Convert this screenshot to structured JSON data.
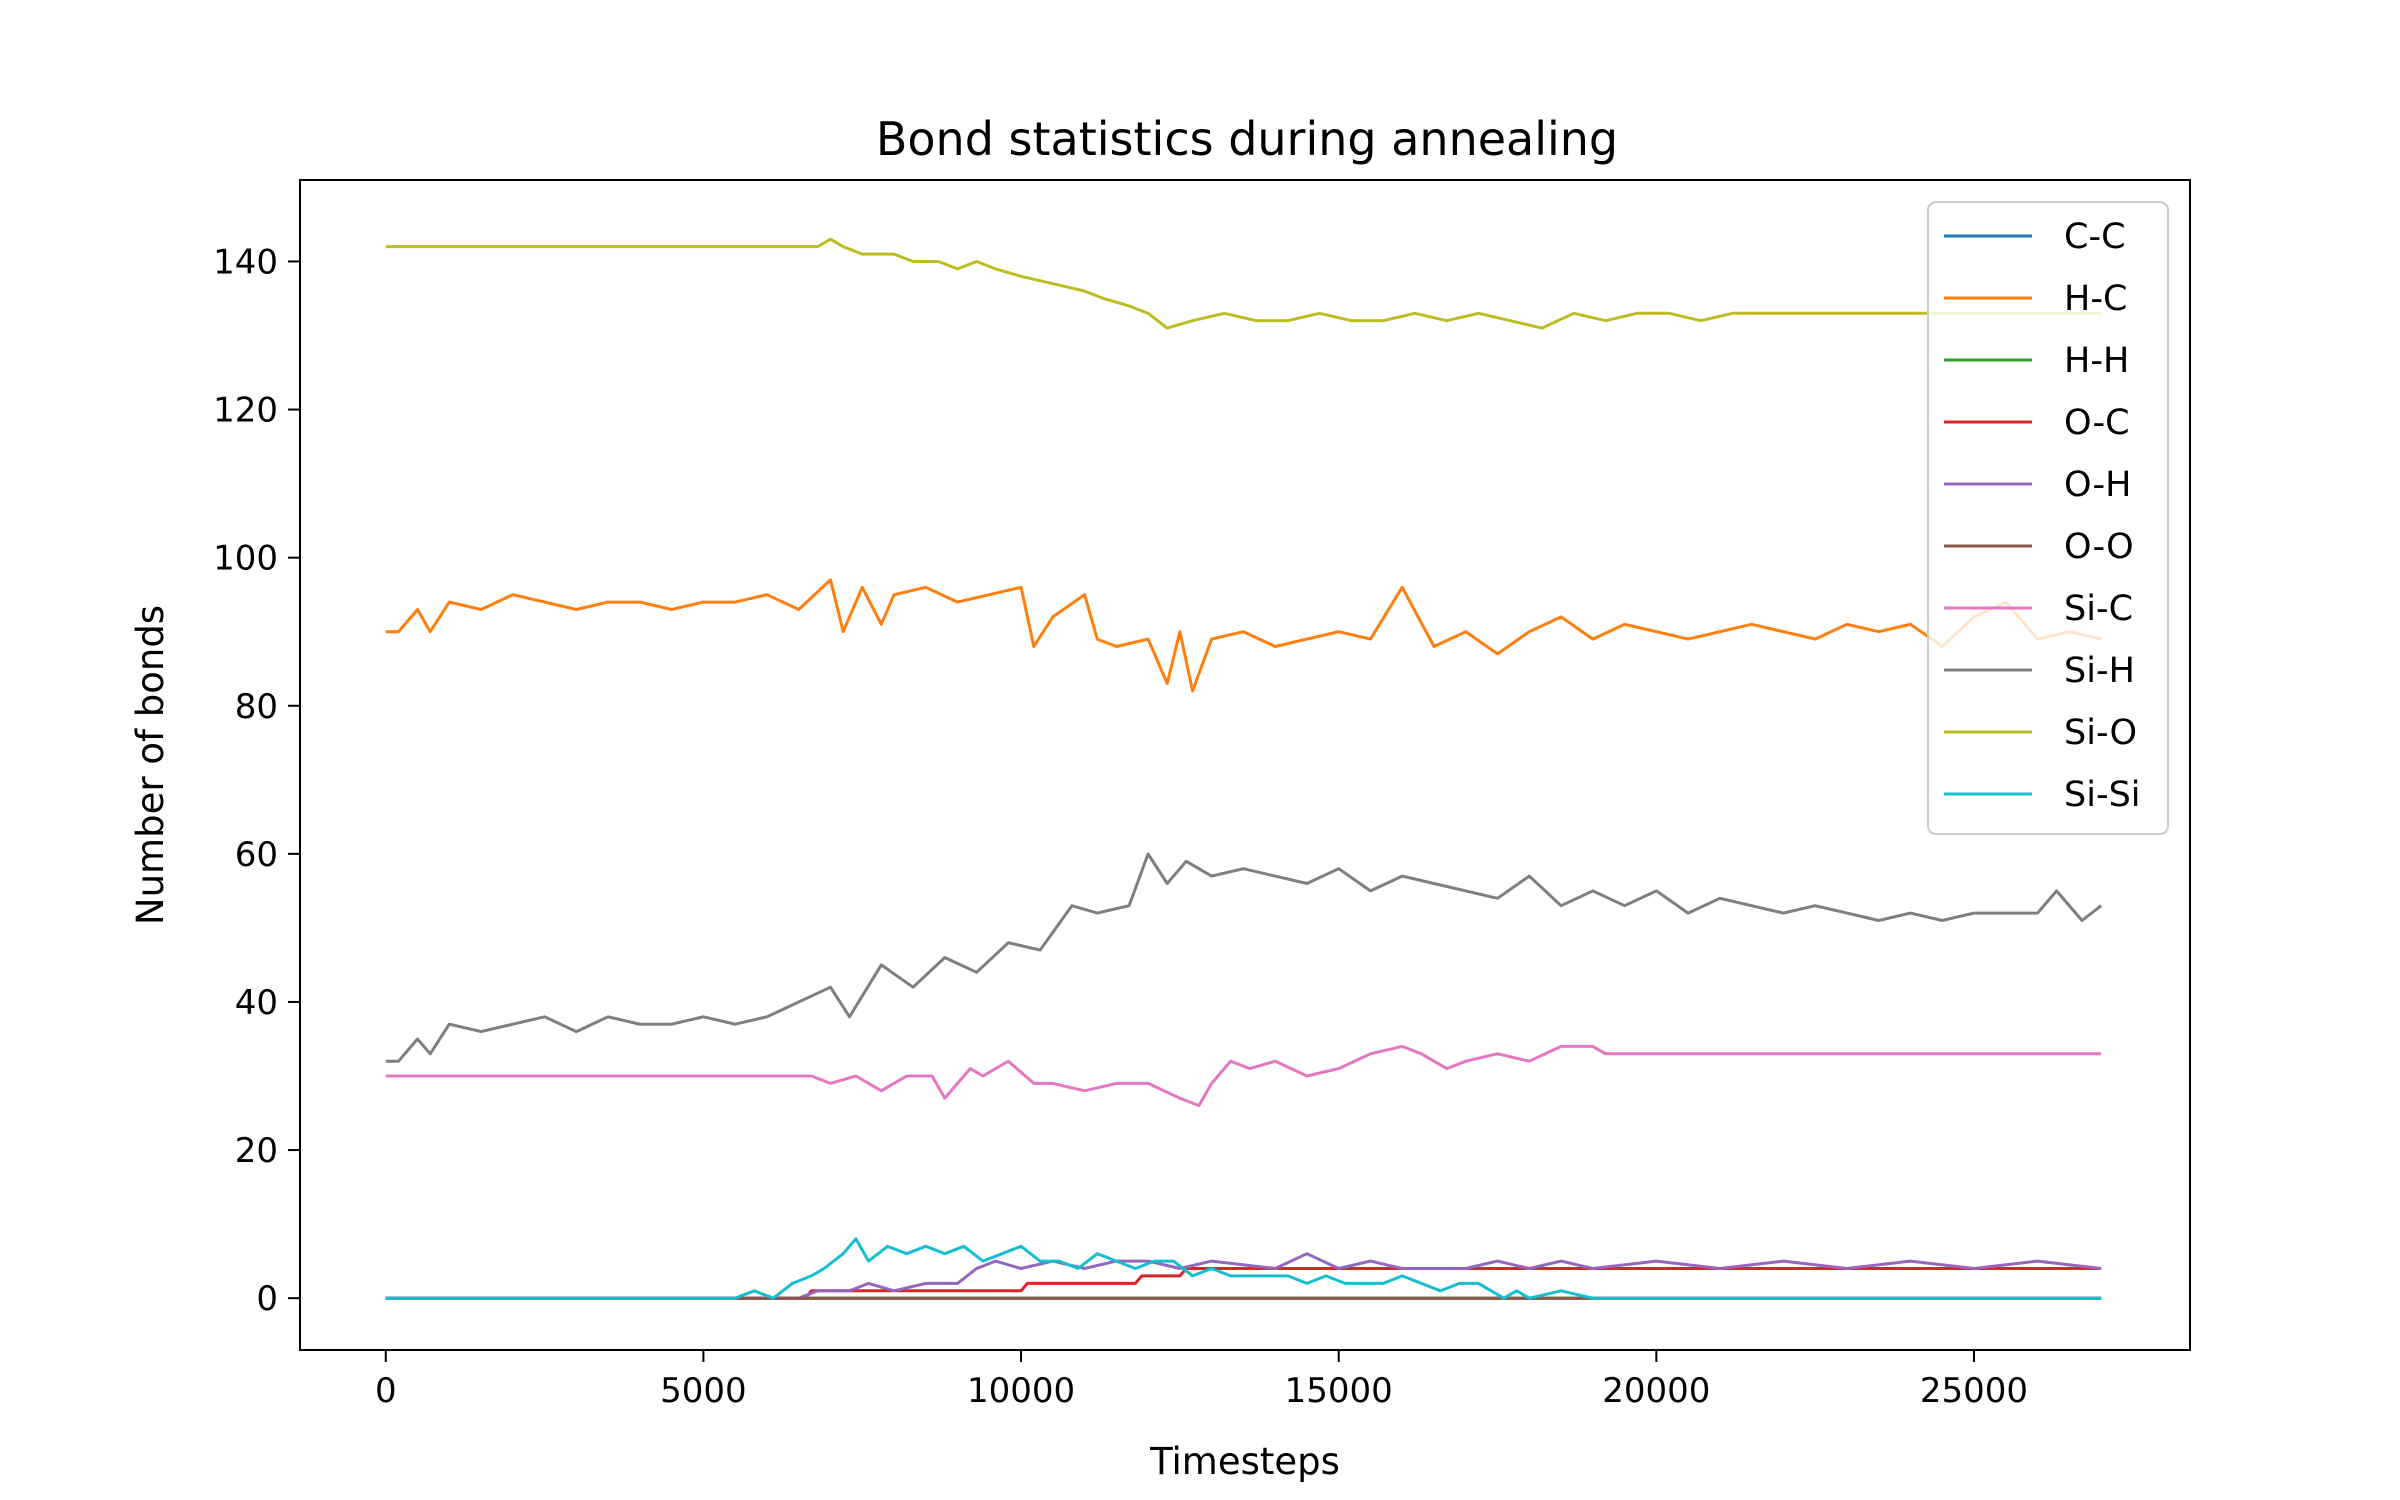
{
  "chart_data": {
    "type": "line",
    "title": "Bond statistics during annealing",
    "xlabel": "Timesteps",
    "ylabel": "Number of bonds",
    "xlim": [
      -1350,
      28400
    ],
    "ylim": [
      -7,
      151
    ],
    "xticks": [
      0,
      5000,
      10000,
      15000,
      20000,
      25000
    ],
    "xtick_labels": [
      "0",
      "5000",
      "10000",
      "15000",
      "20000",
      "25000"
    ],
    "yticks": [
      0,
      20,
      40,
      60,
      80,
      100,
      120,
      140
    ],
    "ytick_labels": [
      "0",
      "20",
      "40",
      "60",
      "80",
      "100",
      "120",
      "140"
    ],
    "grid": false,
    "legend_position": "top-right",
    "series": [
      {
        "name": "C-C",
        "color": "#1f77b4",
        "x": [
          0,
          27000
        ],
        "y": [
          0,
          0
        ]
      },
      {
        "name": "H-C",
        "color": "#ff7f0e",
        "x": [
          0,
          200,
          500,
          700,
          1000,
          1500,
          2000,
          2500,
          3000,
          3500,
          4000,
          4500,
          5000,
          5500,
          6000,
          6500,
          7000,
          7200,
          7500,
          7800,
          8000,
          8500,
          9000,
          9500,
          10000,
          10200,
          10500,
          11000,
          11200,
          11500,
          12000,
          12300,
          12500,
          12700,
          13000,
          13500,
          14000,
          14500,
          15000,
          15500,
          16000,
          16500,
          17000,
          17500,
          18000,
          18500,
          19000,
          19500,
          20000,
          20500,
          21000,
          21500,
          22000,
          22500,
          23000,
          23500,
          24000,
          24500,
          25000,
          25500,
          26000,
          26500,
          27000
        ],
        "y": [
          90,
          90,
          93,
          90,
          94,
          93,
          95,
          94,
          93,
          94,
          94,
          93,
          94,
          94,
          95,
          93,
          97,
          90,
          96,
          91,
          95,
          96,
          94,
          95,
          96,
          88,
          92,
          95,
          89,
          88,
          89,
          83,
          90,
          82,
          89,
          90,
          88,
          89,
          90,
          89,
          96,
          88,
          90,
          87,
          90,
          92,
          89,
          91,
          90,
          89,
          90,
          91,
          90,
          89,
          91,
          90,
          91,
          88,
          92,
          94,
          89,
          90,
          89
        ]
      },
      {
        "name": "H-H",
        "color": "#2ca02c",
        "x": [
          0,
          27000
        ],
        "y": [
          0,
          0
        ]
      },
      {
        "name": "O-C",
        "color": "#d62728",
        "x": [
          0,
          6600,
          6700,
          8000,
          8100,
          10000,
          10100,
          11800,
          11900,
          12500,
          12600,
          16000,
          16100,
          27000
        ],
        "y": [
          0,
          0,
          1,
          1,
          1,
          1,
          2,
          2,
          3,
          3,
          4,
          4,
          4,
          4
        ]
      },
      {
        "name": "O-H",
        "color": "#9467bd",
        "x": [
          0,
          6500,
          6800,
          7300,
          7600,
          8000,
          8500,
          9000,
          9300,
          9600,
          10000,
          10500,
          11000,
          11500,
          12000,
          12500,
          13000,
          14000,
          14500,
          15000,
          15500,
          16000,
          17000,
          17500,
          18000,
          18500,
          19000,
          20000,
          21000,
          22000,
          23000,
          24000,
          25000,
          26000,
          27000
        ],
        "y": [
          0,
          0,
          1,
          1,
          2,
          1,
          2,
          2,
          4,
          5,
          4,
          5,
          4,
          5,
          5,
          4,
          5,
          4,
          6,
          4,
          5,
          4,
          4,
          5,
          4,
          5,
          4,
          5,
          4,
          5,
          4,
          5,
          4,
          5,
          4
        ]
      },
      {
        "name": "O-O",
        "color": "#8c564b",
        "x": [
          0,
          27000
        ],
        "y": [
          0,
          0
        ]
      },
      {
        "name": "Si-C",
        "color": "#e377c2",
        "x": [
          0,
          6700,
          7000,
          7400,
          7800,
          8200,
          8600,
          8800,
          9000,
          9200,
          9400,
          9800,
          10200,
          10500,
          11000,
          11500,
          12000,
          12500,
          12800,
          13000,
          13300,
          13600,
          14000,
          14500,
          15000,
          15500,
          16000,
          16300,
          16700,
          17000,
          17500,
          18000,
          18500,
          19000,
          19200,
          27000
        ],
        "y": [
          30,
          30,
          29,
          30,
          28,
          30,
          30,
          27,
          29,
          31,
          30,
          32,
          29,
          29,
          28,
          29,
          29,
          27,
          26,
          29,
          32,
          31,
          32,
          30,
          31,
          33,
          34,
          33,
          31,
          32,
          33,
          32,
          34,
          34,
          33,
          33
        ]
      },
      {
        "name": "Si-H",
        "color": "#7f7f7f",
        "x": [
          0,
          200,
          500,
          700,
          1000,
          1500,
          2000,
          2500,
          3000,
          3500,
          4000,
          4500,
          5000,
          5500,
          6000,
          6500,
          7000,
          7300,
          7800,
          8300,
          8800,
          9300,
          9800,
          10300,
          10800,
          11200,
          11700,
          12000,
          12300,
          12600,
          13000,
          13500,
          14000,
          14500,
          15000,
          15500,
          16000,
          16500,
          17000,
          17500,
          18000,
          18500,
          19000,
          19500,
          20000,
          20500,
          21000,
          21500,
          22000,
          22500,
          23000,
          23500,
          24000,
          24500,
          25000,
          25500,
          26000,
          26300,
          26700,
          27000
        ],
        "y": [
          32,
          32,
          35,
          33,
          37,
          36,
          37,
          38,
          36,
          38,
          37,
          37,
          38,
          37,
          38,
          40,
          42,
          38,
          45,
          42,
          46,
          44,
          48,
          47,
          53,
          52,
          53,
          60,
          56,
          59,
          57,
          58,
          57,
          56,
          58,
          55,
          57,
          56,
          55,
          54,
          57,
          53,
          55,
          53,
          55,
          52,
          54,
          53,
          52,
          53,
          52,
          51,
          52,
          51,
          52,
          52,
          52,
          55,
          51,
          53
        ]
      },
      {
        "name": "Si-O",
        "color": "#bcbd22",
        "x": [
          0,
          6800,
          7000,
          7200,
          7500,
          8000,
          8300,
          8700,
          9000,
          9300,
          9600,
          10000,
          10500,
          11000,
          11300,
          11700,
          12000,
          12300,
          12700,
          13200,
          13700,
          14200,
          14700,
          15200,
          15700,
          16200,
          16700,
          17200,
          17700,
          18200,
          18700,
          19200,
          19700,
          20200,
          20700,
          21200,
          21700,
          22200,
          22700,
          23500,
          24500,
          25500,
          26500,
          27000
        ],
        "y": [
          142,
          142,
          143,
          142,
          141,
          141,
          140,
          140,
          139,
          140,
          139,
          138,
          137,
          136,
          135,
          134,
          133,
          131,
          132,
          133,
          132,
          132,
          133,
          132,
          132,
          133,
          132,
          133,
          132,
          131,
          133,
          132,
          133,
          133,
          132,
          133,
          133,
          133,
          133,
          133,
          133,
          133,
          133,
          133
        ]
      },
      {
        "name": "Si-Si",
        "color": "#17becf",
        "x": [
          0,
          5500,
          5800,
          6100,
          6400,
          6700,
          6900,
          7200,
          7400,
          7600,
          7900,
          8200,
          8500,
          8800,
          9100,
          9400,
          9700,
          10000,
          10300,
          10600,
          10900,
          11200,
          11500,
          11800,
          12100,
          12400,
          12700,
          13000,
          13300,
          13600,
          13900,
          14200,
          14500,
          14800,
          15100,
          15400,
          15700,
          16000,
          16300,
          16600,
          16900,
          17200,
          17400,
          17600,
          17800,
          18000,
          18500,
          19000,
          20000,
          27000
        ],
        "y": [
          0,
          0,
          1,
          0,
          2,
          3,
          4,
          6,
          8,
          5,
          7,
          6,
          7,
          6,
          7,
          5,
          6,
          7,
          5,
          5,
          4,
          6,
          5,
          4,
          5,
          5,
          3,
          4,
          3,
          3,
          3,
          3,
          2,
          3,
          2,
          2,
          2,
          3,
          2,
          1,
          2,
          2,
          1,
          0,
          1,
          0,
          1,
          0,
          0,
          0
        ]
      }
    ]
  }
}
